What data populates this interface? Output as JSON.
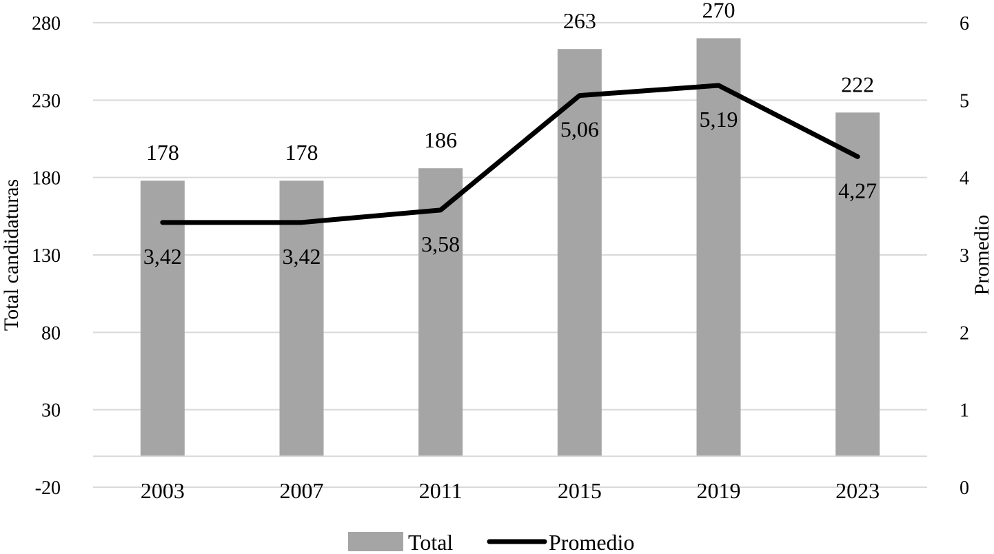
{
  "chart_data": {
    "type": "bar+line",
    "categories": [
      "2003",
      "2007",
      "2011",
      "2015",
      "2019",
      "2023"
    ],
    "series": [
      {
        "name": "Total",
        "type": "bar",
        "axis": "left",
        "color": "#a5a5a5",
        "values": [
          178,
          178,
          186,
          263,
          270,
          222
        ],
        "labels": [
          "178",
          "178",
          "186",
          "263",
          "270",
          "222"
        ]
      },
      {
        "name": "Promedio",
        "type": "line",
        "axis": "right",
        "color": "#000000",
        "values": [
          3.42,
          3.42,
          3.58,
          5.06,
          5.19,
          4.27
        ],
        "labels": [
          "3,42",
          "3,42",
          "3,58",
          "5,06",
          "5,19",
          "4,27"
        ]
      }
    ],
    "ylabel": "Total candidaturas",
    "y2label": "Promedio",
    "ylim": [
      -20,
      280
    ],
    "y2lim": [
      0,
      6
    ],
    "yticks": [
      "-20",
      "30",
      "80",
      "130",
      "180",
      "230",
      "280"
    ],
    "y2ticks": [
      "0",
      "1",
      "2",
      "3",
      "4",
      "5",
      "6"
    ],
    "grid": true,
    "legend": "bottom",
    "legend_labels": [
      "Total",
      "Promedio"
    ]
  }
}
